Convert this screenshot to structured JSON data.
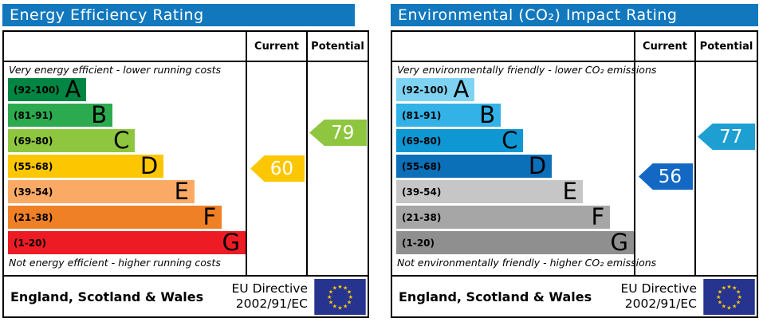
{
  "eu_flag": {
    "background": "#26338f",
    "star_color": "#ffcc00"
  },
  "panels": [
    {
      "title": "Energy Efficiency Rating",
      "header_color": "#1278be",
      "col_current": "Current",
      "col_potential": "Potential",
      "top_note": "Very energy efficient - lower running costs",
      "bottom_note": "Not energy efficient - higher running costs",
      "bands": [
        {
          "range": "(92-100)",
          "letter": "A",
          "color": "#008542",
          "width_pct": 33
        },
        {
          "range": "(81-91)",
          "letter": "B",
          "color": "#2caa4f",
          "width_pct": 44
        },
        {
          "range": "(69-80)",
          "letter": "C",
          "color": "#8ec640",
          "width_pct": 53.5
        },
        {
          "range": "(55-68)",
          "letter": "D",
          "color": "#fcc700",
          "width_pct": 65.5
        },
        {
          "range": "(39-54)",
          "letter": "E",
          "color": "#fbaa65",
          "width_pct": 78.5
        },
        {
          "range": "(21-38)",
          "letter": "F",
          "color": "#f08026",
          "width_pct": 90
        },
        {
          "range": "(1-20)",
          "letter": "G",
          "color": "#ed1c24",
          "width_pct": 100
        }
      ],
      "current": {
        "value": "60",
        "color": "#fcc700"
      },
      "potential": {
        "value": "79",
        "color": "#8ec640"
      },
      "footer_region": "England, Scotland & Wales",
      "directive_line1": "EU Directive",
      "directive_line2": "2002/91/EC"
    },
    {
      "title": "Environmental (CO₂) Impact Rating",
      "header_color": "#1278be",
      "col_current": "Current",
      "col_potential": "Potential",
      "top_note": "Very environmentally friendly - lower CO₂ emissions",
      "bottom_note": "Not environmentally friendly - higher CO₂ emissions",
      "bands": [
        {
          "range": "(92-100)",
          "letter": "A",
          "color": "#7fd3f2",
          "width_pct": 33
        },
        {
          "range": "(81-91)",
          "letter": "B",
          "color": "#32b2e6",
          "width_pct": 44
        },
        {
          "range": "(69-80)",
          "letter": "C",
          "color": "#0f97d4",
          "width_pct": 53.5
        },
        {
          "range": "(55-68)",
          "letter": "D",
          "color": "#0c70b9",
          "width_pct": 65.5
        },
        {
          "range": "(39-54)",
          "letter": "E",
          "color": "#c6c6c6",
          "width_pct": 78.5
        },
        {
          "range": "(21-38)",
          "letter": "F",
          "color": "#a6a6a6",
          "width_pct": 90
        },
        {
          "range": "(1-20)",
          "letter": "G",
          "color": "#8f8f8f",
          "width_pct": 100
        }
      ],
      "current": {
        "value": "56",
        "color": "#1268c3"
      },
      "potential": {
        "value": "77",
        "color": "#1d9fd1"
      },
      "footer_region": "England, Scotland & Wales",
      "directive_line1": "EU Directive",
      "directive_line2": "2002/91/EC"
    }
  ],
  "chart_data": [
    {
      "type": "bar",
      "title": "Energy Efficiency Rating",
      "categories": [
        "A (92-100)",
        "B (81-91)",
        "C (69-80)",
        "D (55-68)",
        "E (39-54)",
        "F (21-38)",
        "G (1-20)"
      ],
      "series": [
        {
          "name": "Current",
          "values": [
            60
          ],
          "band": "D"
        },
        {
          "name": "Potential",
          "values": [
            79
          ],
          "band": "C"
        }
      ],
      "xlabel": "",
      "ylabel": "",
      "ylim": [
        1,
        100
      ],
      "annotations": [
        "Very energy efficient - lower running costs",
        "Not energy efficient - higher running costs",
        "England, Scotland & Wales",
        "EU Directive 2002/91/EC"
      ]
    },
    {
      "type": "bar",
      "title": "Environmental (CO₂) Impact Rating",
      "categories": [
        "A (92-100)",
        "B (81-91)",
        "C (69-80)",
        "D (55-68)",
        "E (39-54)",
        "F (21-38)",
        "G (1-20)"
      ],
      "series": [
        {
          "name": "Current",
          "values": [
            56
          ],
          "band": "D"
        },
        {
          "name": "Potential",
          "values": [
            77
          ],
          "band": "C"
        }
      ],
      "xlabel": "",
      "ylabel": "",
      "ylim": [
        1,
        100
      ],
      "annotations": [
        "Very environmentally friendly - lower CO₂ emissions",
        "Not environmentally friendly - higher CO₂ emissions",
        "England, Scotland & Wales",
        "EU Directive 2002/91/EC"
      ]
    }
  ]
}
